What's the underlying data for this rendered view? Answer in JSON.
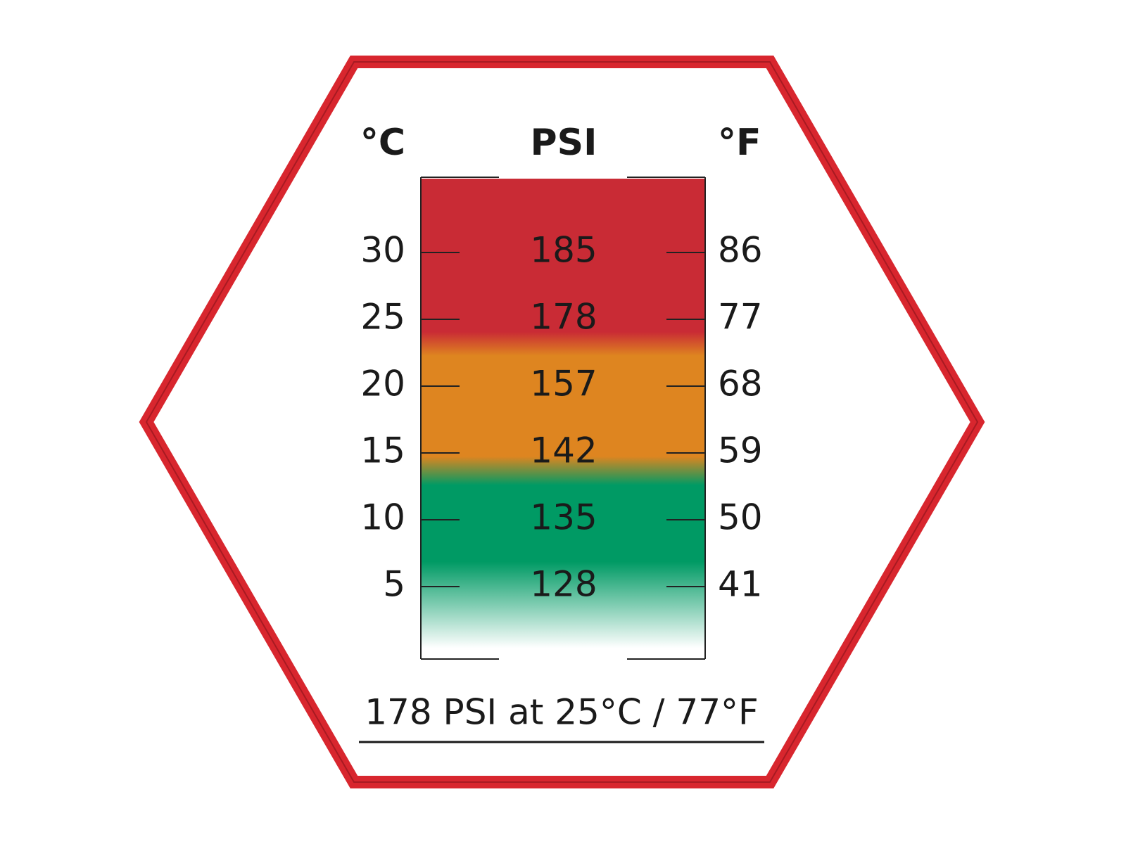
{
  "header": {
    "celsius": "°C",
    "psi": "PSI",
    "fahrenheit": "°F"
  },
  "rows": [
    [
      30,
      185,
      86
    ],
    [
      25,
      178,
      77
    ],
    [
      20,
      157,
      68
    ],
    [
      15,
      142,
      59
    ],
    [
      10,
      135,
      50
    ],
    [
      5,
      128,
      41
    ]
  ],
  "footer": "178 PSI at 25°C / 77°F"
}
